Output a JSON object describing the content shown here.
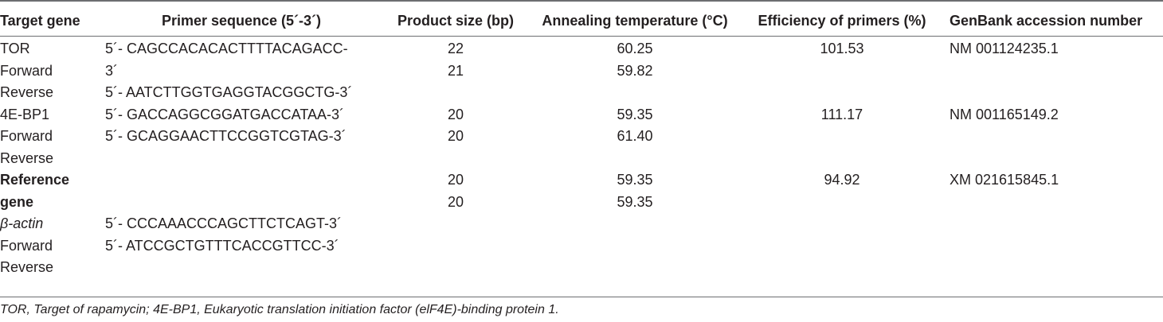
{
  "table": {
    "headers": {
      "target_gene": "Target gene",
      "primer_sequence": "Primer sequence (5´-3´)",
      "product_size": "Product size (bp)",
      "annealing_temperature": "Annealing temperature (°C)",
      "efficiency": "Efficiency of primers (%)",
      "genbank": "GenBank accession number"
    },
    "gene_col": [
      "TOR",
      "Forward",
      "Reverse",
      "4E-BP1",
      "Forward",
      "Reverse",
      "Reference",
      "gene",
      "β-actin",
      "Forward",
      "Reverse"
    ],
    "primer_col": [
      "5´- CAGCCACACACTTTTACAGACC-",
      "3´",
      "5´- AATCTTGGTGAGGTACGGCTG-3´",
      "5´- GACCAGGCGGATGACCATAA-3´",
      "5´- GCAGGAACTTCCGGTCGTAG-3´",
      "",
      "",
      "",
      "5´- CCCAAACCCAGCTTCTCAGT-3´",
      "5´- ATCCGCTGTTTCACCGTTCC-3´",
      ""
    ],
    "size_col": [
      "22",
      "21",
      "",
      "20",
      "20",
      "",
      "20",
      "20",
      "",
      "",
      ""
    ],
    "temp_col": [
      "60.25",
      "59.82",
      "",
      "59.35",
      "61.40",
      "",
      "59.35",
      "59.35",
      "",
      "",
      ""
    ],
    "efficiency_col": [
      "101.53",
      "",
      "",
      "111.17",
      "",
      "",
      "94.92",
      "",
      "",
      "",
      ""
    ],
    "genbank_col": [
      "NM 001124235.1",
      "",
      "",
      "NM 001165149.2",
      "",
      "",
      "XM 021615845.1",
      "",
      "",
      "",
      ""
    ]
  },
  "footnote": "TOR, Target of rapamycin; 4E-BP1, Eukaryotic translation initiation factor (elF4E)-binding protein 1."
}
